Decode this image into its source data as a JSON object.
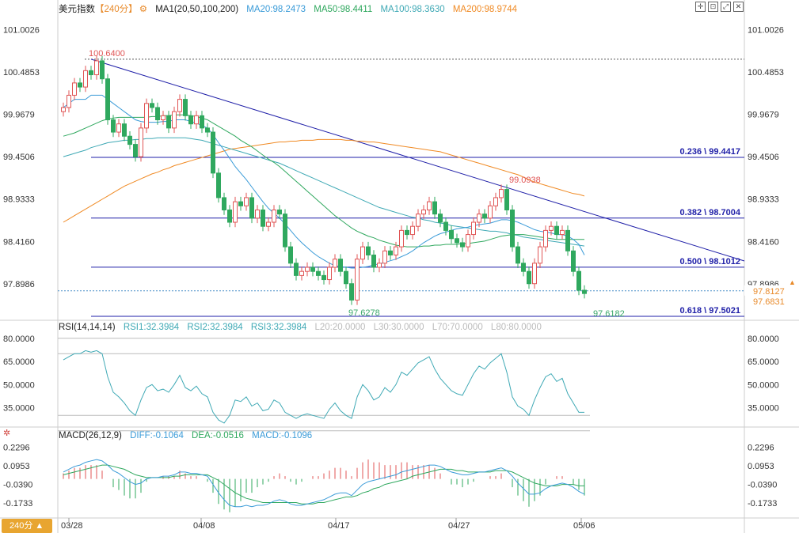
{
  "header": {
    "symbol": "美元指数",
    "period": "【240分】",
    "ma_label": "MA1(20,50,100,200)",
    "ma20": "MA20:98.2473",
    "ma50": "MA50:98.4411",
    "ma100": "MA100:98.3630",
    "ma200": "MA200:98.9744"
  },
  "rsi_header": {
    "label": "RSI(14,14,14)",
    "rsi1": "RSI1:32.3984",
    "rsi2": "RSI2:32.3984",
    "rsi3": "RSI3:32.3984",
    "l20": "L20:20.0000",
    "l30": "L30:30.0000",
    "l70": "L70:70.0000",
    "l80": "L80:80.0000"
  },
  "macd_header": {
    "label": "MACD(26,12,9)",
    "diff": "DIFF:-0.1064",
    "dea": "DEA:-0.0516",
    "macd": "MACD:-0.1096"
  },
  "period_button": "240分",
  "colors": {
    "up": "#e05555",
    "down": "#2fa85e",
    "ma20": "#3a9bd8",
    "ma50": "#2fa85e",
    "ma100": "#3fa9b5",
    "ma200": "#f08a24",
    "trend": "#1f1fa8",
    "fib": "#1f1fa8",
    "rsi": "#3fa9b5"
  },
  "chart_data": [
    {
      "type": "candlestick",
      "y_ticks": [
        "101.0026",
        "100.4853",
        "99.9679",
        "99.4506",
        "98.9333",
        "98.4160",
        "97.8986"
      ],
      "ylim": [
        97.55,
        101.15
      ],
      "x_labels": [
        "03/28",
        "04/08",
        "04/17",
        "04/27",
        "05/06"
      ],
      "price_tags": [
        "97.8127",
        "97.6831"
      ],
      "annotations": [
        {
          "text": "100.6400",
          "value": 100.64,
          "kind": "high"
        },
        {
          "text": "99.0938",
          "value": 99.0938,
          "kind": "high"
        },
        {
          "text": "97.6278",
          "value": 97.6278,
          "kind": "low"
        },
        {
          "text": "97.6182",
          "value": 97.6182,
          "kind": "low"
        }
      ],
      "fibonacci": [
        {
          "text": "0.236 \\ 99.4417",
          "value": 99.4417
        },
        {
          "text": "0.382 \\ 98.7004",
          "value": 98.7004
        },
        {
          "text": "0.500 \\ 98.1012",
          "value": 98.1012
        },
        {
          "text": "0.618 \\ 97.5021",
          "value": 97.5021
        }
      ],
      "close": [
        100.05,
        100.2,
        100.35,
        100.3,
        100.5,
        100.45,
        100.62,
        100.4,
        99.9,
        99.75,
        99.85,
        99.7,
        99.6,
        99.45,
        99.8,
        100.1,
        100.05,
        99.9,
        99.95,
        99.8,
        100.0,
        100.15,
        99.95,
        99.85,
        99.95,
        99.8,
        99.75,
        99.25,
        98.95,
        98.8,
        98.65,
        98.9,
        98.85,
        98.95,
        98.7,
        98.8,
        98.6,
        98.65,
        98.8,
        98.75,
        98.35,
        98.15,
        98.0,
        98.05,
        98.1,
        98.05,
        98.0,
        97.95,
        98.1,
        98.2,
        98.05,
        97.9,
        97.7,
        98.2,
        98.35,
        98.25,
        98.1,
        98.15,
        98.3,
        98.25,
        98.35,
        98.55,
        98.5,
        98.6,
        98.75,
        98.8,
        98.9,
        98.75,
        98.65,
        98.55,
        98.45,
        98.4,
        98.35,
        98.5,
        98.65,
        98.75,
        98.7,
        98.85,
        98.95,
        99.05,
        98.8,
        98.35,
        98.15,
        98.05,
        97.9,
        98.15,
        98.35,
        98.55,
        98.6,
        98.5,
        98.55,
        98.3,
        98.05,
        97.82,
        97.78
      ],
      "ma20": [
        100.05,
        100.1,
        100.15,
        100.15,
        100.15,
        100.2,
        100.2,
        100.2,
        100.15,
        100.1,
        100.05,
        100.0,
        99.95,
        99.9,
        99.88,
        99.87,
        99.87,
        99.87,
        99.88,
        99.88,
        99.9,
        99.9,
        99.9,
        99.88,
        99.86,
        99.83,
        99.8,
        99.72,
        99.62,
        99.53,
        99.43,
        99.33,
        99.25,
        99.17,
        99.08,
        98.99,
        98.9,
        98.82,
        98.76,
        98.7,
        98.63,
        98.55,
        98.47,
        98.4,
        98.34,
        98.28,
        98.23,
        98.19,
        98.15,
        98.12,
        98.11,
        98.1,
        98.09,
        98.09,
        98.1,
        98.11,
        98.13,
        98.14,
        98.16,
        98.18,
        98.2,
        98.23,
        98.26,
        98.3,
        98.35,
        98.4,
        98.44,
        98.48,
        98.51,
        98.53,
        98.55,
        98.57,
        98.58,
        98.59,
        98.61,
        98.62,
        98.63,
        98.64,
        98.66,
        98.68,
        98.68,
        98.67,
        98.65,
        98.62,
        98.59,
        98.56,
        98.54,
        98.53,
        98.52,
        98.5,
        98.5,
        98.48,
        98.44,
        98.38,
        98.25
      ],
      "ma50": [
        99.7,
        99.72,
        99.74,
        99.77,
        99.8,
        99.83,
        99.86,
        99.89,
        99.91,
        99.92,
        99.93,
        99.93,
        99.93,
        99.93,
        99.93,
        99.93,
        99.94,
        99.94,
        99.95,
        99.95,
        99.96,
        99.96,
        99.96,
        99.95,
        99.94,
        99.92,
        99.9,
        99.86,
        99.82,
        99.78,
        99.74,
        99.7,
        99.65,
        99.61,
        99.57,
        99.52,
        99.47,
        99.42,
        99.38,
        99.33,
        99.27,
        99.21,
        99.15,
        99.09,
        99.03,
        98.97,
        98.91,
        98.85,
        98.79,
        98.73,
        98.68,
        98.63,
        98.58,
        98.54,
        98.51,
        98.48,
        98.46,
        98.43,
        98.41,
        98.39,
        98.37,
        98.36,
        98.35,
        98.35,
        98.35,
        98.36,
        98.36,
        98.37,
        98.37,
        98.38,
        98.38,
        98.38,
        98.39,
        98.39,
        98.4,
        98.41,
        98.42,
        98.44,
        98.46,
        98.48,
        98.49,
        98.5,
        98.5,
        98.5,
        98.49,
        98.48,
        98.47,
        98.46,
        98.45,
        98.44,
        98.44,
        98.44,
        98.44,
        98.44,
        98.44
      ],
      "ma100": [
        99.45,
        99.47,
        99.49,
        99.51,
        99.53,
        99.56,
        99.58,
        99.6,
        99.62,
        99.63,
        99.64,
        99.65,
        99.65,
        99.66,
        99.66,
        99.67,
        99.67,
        99.68,
        99.68,
        99.68,
        99.68,
        99.68,
        99.68,
        99.67,
        99.66,
        99.65,
        99.63,
        99.61,
        99.59,
        99.57,
        99.55,
        99.53,
        99.51,
        99.49,
        99.47,
        99.45,
        99.43,
        99.41,
        99.39,
        99.37,
        99.34,
        99.31,
        99.28,
        99.25,
        99.22,
        99.19,
        99.16,
        99.13,
        99.1,
        99.07,
        99.04,
        99.01,
        98.98,
        98.95,
        98.92,
        98.89,
        98.86,
        98.83,
        98.81,
        98.79,
        98.77,
        98.75,
        98.73,
        98.71,
        98.7,
        98.68,
        98.67,
        98.65,
        98.64,
        98.63,
        98.61,
        98.6,
        98.59,
        98.58,
        98.57,
        98.56,
        98.55,
        98.54,
        98.54,
        98.53,
        98.52,
        98.5,
        98.49,
        98.47,
        98.46,
        98.45,
        98.44,
        98.43,
        98.42,
        98.41,
        98.4,
        98.39,
        98.38,
        98.37,
        98.36
      ],
      "ma200": [
        98.65,
        98.69,
        98.73,
        98.77,
        98.81,
        98.85,
        98.89,
        98.93,
        98.97,
        99.01,
        99.05,
        99.09,
        99.12,
        99.15,
        99.18,
        99.21,
        99.24,
        99.26,
        99.29,
        99.31,
        99.34,
        99.36,
        99.38,
        99.4,
        99.42,
        99.44,
        99.46,
        99.48,
        99.5,
        99.52,
        99.54,
        99.55,
        99.56,
        99.57,
        99.58,
        99.59,
        99.6,
        99.61,
        99.62,
        99.63,
        99.63,
        99.64,
        99.64,
        99.65,
        99.65,
        99.65,
        99.66,
        99.66,
        99.66,
        99.66,
        99.66,
        99.65,
        99.65,
        99.64,
        99.64,
        99.63,
        99.63,
        99.62,
        99.61,
        99.6,
        99.59,
        99.58,
        99.57,
        99.56,
        99.55,
        99.54,
        99.53,
        99.52,
        99.51,
        99.49,
        99.47,
        99.45,
        99.43,
        99.41,
        99.39,
        99.37,
        99.35,
        99.33,
        99.31,
        99.29,
        99.27,
        99.25,
        99.23,
        99.2,
        99.17,
        99.14,
        99.12,
        99.1,
        99.08,
        99.06,
        99.04,
        99.02,
        99.0,
        98.99,
        98.97
      ]
    },
    {
      "type": "line",
      "name": "RSI",
      "y_ticks": [
        "80.0000",
        "65.0000",
        "50.0000",
        "35.0000"
      ],
      "ylim": [
        25,
        85
      ],
      "values": [
        66,
        68,
        70,
        70,
        72,
        71,
        72,
        70,
        55,
        45,
        42,
        38,
        33,
        30,
        40,
        48,
        50,
        46,
        47,
        45,
        50,
        56,
        48,
        46,
        49,
        44,
        42,
        32,
        27,
        25,
        30,
        40,
        39,
        42,
        36,
        38,
        33,
        34,
        40,
        38,
        32,
        30,
        28,
        30,
        31,
        30,
        29,
        28,
        34,
        38,
        33,
        30,
        28,
        42,
        50,
        46,
        40,
        42,
        48,
        45,
        50,
        58,
        56,
        60,
        64,
        66,
        68,
        60,
        54,
        50,
        46,
        44,
        43,
        50,
        57,
        62,
        60,
        64,
        67,
        70,
        58,
        42,
        36,
        34,
        30,
        40,
        48,
        55,
        57,
        52,
        54,
        44,
        38,
        32,
        32
      ]
    },
    {
      "type": "bar+line",
      "name": "MACD",
      "y_ticks": [
        "0.2296",
        "0.0953",
        "-0.0390",
        "-0.1733"
      ],
      "ylim": [
        -0.27,
        0.3
      ],
      "diff": [
        0.05,
        0.07,
        0.09,
        0.1,
        0.12,
        0.13,
        0.14,
        0.13,
        0.1,
        0.06,
        0.04,
        0.01,
        -0.02,
        -0.04,
        -0.03,
        0.0,
        0.01,
        0.01,
        0.02,
        0.02,
        0.03,
        0.05,
        0.05,
        0.04,
        0.04,
        0.03,
        0.02,
        -0.04,
        -0.1,
        -0.15,
        -0.19,
        -0.2,
        -0.2,
        -0.19,
        -0.2,
        -0.19,
        -0.19,
        -0.18,
        -0.16,
        -0.15,
        -0.16,
        -0.18,
        -0.19,
        -0.19,
        -0.18,
        -0.17,
        -0.16,
        -0.15,
        -0.13,
        -0.11,
        -0.1,
        -0.1,
        -0.12,
        -0.08,
        -0.04,
        -0.02,
        -0.01,
        0.0,
        0.01,
        0.02,
        0.03,
        0.05,
        0.06,
        0.07,
        0.08,
        0.09,
        0.1,
        0.1,
        0.09,
        0.07,
        0.05,
        0.04,
        0.03,
        0.03,
        0.04,
        0.05,
        0.05,
        0.06,
        0.07,
        0.08,
        0.06,
        0.02,
        -0.03,
        -0.07,
        -0.11,
        -0.11,
        -0.1,
        -0.07,
        -0.05,
        -0.04,
        -0.03,
        -0.04,
        -0.06,
        -0.09,
        -0.11
      ],
      "dea": [
        0.03,
        0.04,
        0.05,
        0.06,
        0.07,
        0.08,
        0.09,
        0.1,
        0.1,
        0.09,
        0.08,
        0.07,
        0.05,
        0.03,
        0.02,
        0.01,
        0.01,
        0.01,
        0.01,
        0.01,
        0.02,
        0.02,
        0.03,
        0.03,
        0.03,
        0.03,
        0.03,
        0.01,
        -0.01,
        -0.04,
        -0.07,
        -0.1,
        -0.12,
        -0.14,
        -0.15,
        -0.16,
        -0.17,
        -0.17,
        -0.17,
        -0.17,
        -0.17,
        -0.17,
        -0.17,
        -0.18,
        -0.18,
        -0.18,
        -0.17,
        -0.17,
        -0.16,
        -0.15,
        -0.14,
        -0.13,
        -0.13,
        -0.12,
        -0.1,
        -0.09,
        -0.07,
        -0.06,
        -0.04,
        -0.03,
        -0.02,
        -0.01,
        0.0,
        0.02,
        0.03,
        0.04,
        0.05,
        0.06,
        0.07,
        0.07,
        0.07,
        0.06,
        0.06,
        0.05,
        0.05,
        0.05,
        0.05,
        0.05,
        0.06,
        0.06,
        0.06,
        0.05,
        0.03,
        0.01,
        -0.01,
        -0.03,
        -0.04,
        -0.05,
        -0.05,
        -0.05,
        -0.04,
        -0.04,
        -0.04,
        -0.05,
        -0.05
      ]
    }
  ]
}
